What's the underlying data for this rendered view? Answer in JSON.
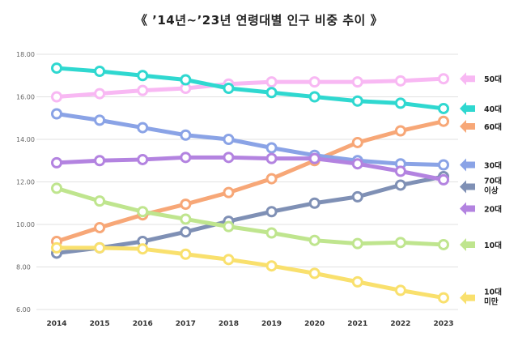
{
  "chart_data": {
    "type": "line",
    "title": "《 ’14년~’23년 연령대별 인구 비중 추이 》",
    "x": [
      "2014",
      "2015",
      "2016",
      "2017",
      "2018",
      "2019",
      "2020",
      "2021",
      "2022",
      "2023"
    ],
    "y_ticks": [
      "18.00",
      "16.00",
      "14.00",
      "12.00",
      "10.00",
      "8.00",
      "6.00"
    ],
    "ylim": [
      6,
      18
    ],
    "grid": "horizontal",
    "legend_placement": "right",
    "series": [
      {
        "name": "50대",
        "label_lines": [
          "50대"
        ],
        "color": "#f8b8f3",
        "values": [
          16.0,
          16.15,
          16.3,
          16.4,
          16.6,
          16.7,
          16.7,
          16.7,
          16.75,
          16.85
        ]
      },
      {
        "name": "40대",
        "label_lines": [
          "40대"
        ],
        "color": "#2fd8d0",
        "values": [
          17.35,
          17.2,
          17.0,
          16.8,
          16.4,
          16.2,
          16.0,
          15.8,
          15.7,
          15.45
        ]
      },
      {
        "name": "60대",
        "label_lines": [
          "60대"
        ],
        "color": "#f7a777",
        "values": [
          9.2,
          9.85,
          10.45,
          10.95,
          11.5,
          12.15,
          13.0,
          13.85,
          14.4,
          14.85
        ]
      },
      {
        "name": "30대",
        "label_lines": [
          "30대"
        ],
        "color": "#8aa3e6",
        "values": [
          15.2,
          14.9,
          14.55,
          14.2,
          14.0,
          13.6,
          13.25,
          13.0,
          12.85,
          12.8
        ]
      },
      {
        "name": "70대 이상",
        "label_lines": [
          "70대",
          "이상"
        ],
        "color": "#7f90b5",
        "values": [
          8.65,
          8.9,
          9.2,
          9.65,
          10.15,
          10.6,
          11.0,
          11.3,
          11.85,
          12.25
        ]
      },
      {
        "name": "20대",
        "label_lines": [
          "20대"
        ],
        "color": "#b383e0",
        "values": [
          12.9,
          13.0,
          13.05,
          13.15,
          13.15,
          13.1,
          13.1,
          12.85,
          12.5,
          12.1
        ]
      },
      {
        "name": "10대",
        "label_lines": [
          "10대"
        ],
        "color": "#bfe58e",
        "values": [
          11.7,
          11.1,
          10.6,
          10.25,
          9.9,
          9.6,
          9.25,
          9.1,
          9.15,
          9.05
        ]
      },
      {
        "name": "10대 미만",
        "label_lines": [
          "10대",
          "미만"
        ],
        "color": "#f9e06d",
        "values": [
          8.9,
          8.9,
          8.85,
          8.6,
          8.35,
          8.05,
          7.7,
          7.3,
          6.9,
          6.55
        ]
      }
    ]
  }
}
